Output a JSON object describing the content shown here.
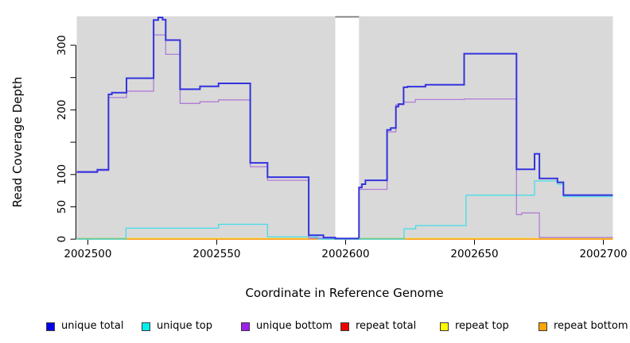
{
  "chart_data": {
    "type": "line",
    "subtype": "step-after-coverage-plot",
    "title": "",
    "xlabel": "Coordinate in Reference Genome",
    "ylabel": "Read Coverage Depth",
    "xlim": [
      2002495.7,
      2002703.7
    ],
    "ylim": [
      0,
      345
    ],
    "grid": false,
    "plot_bg": "#d9d9d9",
    "gap_region": {
      "x_start": 2002596.0,
      "x_end": 2002605.2,
      "fill": "#ffffff",
      "top_edge_color": "#8a8a8a"
    },
    "x_ticks": {
      "values": [
        2002500,
        2002550,
        2002600,
        2002650,
        2002700
      ],
      "labels": [
        "2002500",
        "2002550",
        "2002600",
        "2002650",
        "2002700"
      ]
    },
    "y_ticks": {
      "values": [
        0,
        50,
        100,
        150,
        200,
        250,
        300
      ],
      "labels": [
        "0",
        "50",
        "100",
        "",
        "200",
        "",
        "300"
      ]
    },
    "series": [
      {
        "name": "repeat total",
        "color": "#ee2222",
        "width": 1.2,
        "points": [
          [
            2002495.7,
            0
          ],
          [
            2002703.7,
            0
          ]
        ]
      },
      {
        "name": "repeat top",
        "color": "#f5e642",
        "width": 1.2,
        "points": [
          [
            2002495.7,
            1.2
          ],
          [
            2002703.7,
            1.2
          ]
        ]
      },
      {
        "name": "repeat bottom",
        "color": "#ff9f1a",
        "width": 1.6,
        "points": [
          [
            2002495.7,
            0
          ],
          [
            2002703.7,
            0
          ]
        ]
      },
      {
        "name": "unique top",
        "color": "#45dde8",
        "width": 1.3,
        "points": [
          [
            2002495.7,
            0
          ],
          [
            2002514.8,
            17
          ],
          [
            2002550.7,
            23
          ],
          [
            2002569.7,
            3.5
          ],
          [
            2002589.3,
            0
          ],
          [
            2002622.7,
            16
          ],
          [
            2002627.2,
            21
          ],
          [
            2002646.7,
            68
          ],
          [
            2002673.3,
            90
          ],
          [
            2002682.2,
            85
          ],
          [
            2002684.5,
            66
          ],
          [
            2002703.7,
            66
          ]
        ]
      },
      {
        "name": "unique bottom",
        "color": "#b07cd6",
        "width": 1.3,
        "points": [
          [
            2002495.7,
            103
          ],
          [
            2002503.7,
            106
          ],
          [
            2002508.0,
            219
          ],
          [
            2002515.0,
            229
          ],
          [
            2002525.5,
            316
          ],
          [
            2002530.2,
            286
          ],
          [
            2002535.8,
            210
          ],
          [
            2002543.5,
            212.5
          ],
          [
            2002550.7,
            215.5
          ],
          [
            2002563.0,
            112
          ],
          [
            2002569.7,
            91
          ],
          [
            2002585.7,
            1.5
          ],
          [
            2002596.0,
            1
          ],
          [
            2002605.2,
            77
          ],
          [
            2002616.1,
            166
          ],
          [
            2002619.5,
            208
          ],
          [
            2002622.5,
            212
          ],
          [
            2002627.0,
            216
          ],
          [
            2002646.0,
            217
          ],
          [
            2002666.3,
            38
          ],
          [
            2002668.3,
            40.5
          ],
          [
            2002675.2,
            2.5
          ],
          [
            2002703.7,
            2.5
          ]
        ]
      },
      {
        "name": "unique total",
        "color": "#3333dd",
        "width": 2,
        "points": [
          [
            2002495.7,
            104
          ],
          [
            2002503.7,
            107.5
          ],
          [
            2002508.0,
            224
          ],
          [
            2002509.3,
            226.5
          ],
          [
            2002515.0,
            249
          ],
          [
            2002525.5,
            339
          ],
          [
            2002527.3,
            343
          ],
          [
            2002529.0,
            339.5
          ],
          [
            2002530.2,
            308
          ],
          [
            2002535.8,
            232
          ],
          [
            2002543.5,
            236.5
          ],
          [
            2002550.7,
            241
          ],
          [
            2002563.0,
            118
          ],
          [
            2002569.7,
            96
          ],
          [
            2002585.7,
            6
          ],
          [
            2002591.4,
            2.5
          ],
          [
            2002596.0,
            1
          ],
          [
            2002605.2,
            80
          ],
          [
            2002606.3,
            85
          ],
          [
            2002607.7,
            91
          ],
          [
            2002616.1,
            169
          ],
          [
            2002617.5,
            172
          ],
          [
            2002619.5,
            205
          ],
          [
            2002620.5,
            209
          ],
          [
            2002622.5,
            235
          ],
          [
            2002624.0,
            236
          ],
          [
            2002631.0,
            239
          ],
          [
            2002646.0,
            287
          ],
          [
            2002666.3,
            108
          ],
          [
            2002673.3,
            132
          ],
          [
            2002675.2,
            94
          ],
          [
            2002682.2,
            88
          ],
          [
            2002684.5,
            68
          ],
          [
            2002703.7,
            68
          ]
        ]
      }
    ],
    "blend_segments": [
      {
        "note": "cyan-over-yellow at zero reads as green",
        "color": "#6cc99a",
        "value": 0.8,
        "x_start": 2002495.7,
        "x_end": 2002514.8
      },
      {
        "note": "cyan-over-yellow at zero reads as green",
        "color": "#6cc99a",
        "value": 0.8,
        "x_start": 2002605.2,
        "x_end": 2002622.7
      }
    ]
  },
  "legend": {
    "items": [
      {
        "label": "unique total",
        "color": "#0000ee"
      },
      {
        "label": "unique top",
        "color": "#00eeee"
      },
      {
        "label": "unique bottom",
        "color": "#a020f0"
      },
      {
        "label": "repeat total",
        "color": "#ee0000"
      },
      {
        "label": "repeat top",
        "color": "#ffff00"
      },
      {
        "label": "repeat bottom",
        "color": "#ffa500"
      }
    ]
  }
}
